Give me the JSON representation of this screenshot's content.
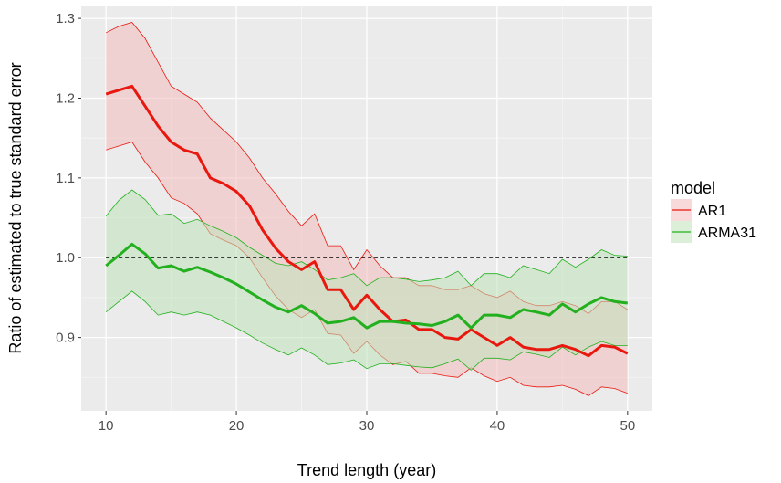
{
  "chart_data": {
    "type": "line",
    "title": "",
    "xlabel": "Trend length (year)",
    "ylabel": "Ratio of estimated to true standard error",
    "xlim": [
      8.1,
      51.9
    ],
    "ylim": [
      0.808,
      1.315
    ],
    "x_ticks": [
      10,
      20,
      30,
      40,
      50
    ],
    "x_tick_labels": [
      "10",
      "20",
      "30",
      "40",
      "50"
    ],
    "y_ticks": [
      0.9,
      1.0,
      1.1,
      1.2,
      1.3
    ],
    "y_tick_labels": [
      "0.9",
      "1.0",
      "1.1",
      "1.2",
      "1.3"
    ],
    "grid": true,
    "reference_line": {
      "y": 1.0,
      "style": "dashed",
      "color": "#000000"
    },
    "legend": {
      "title": "model",
      "position": "right",
      "entries": [
        "AR1",
        "ARMA31"
      ]
    },
    "x": [
      10,
      11,
      12,
      13,
      14,
      15,
      16,
      17,
      18,
      19,
      20,
      21,
      22,
      23,
      24,
      25,
      26,
      27,
      28,
      29,
      30,
      31,
      32,
      33,
      34,
      35,
      36,
      37,
      38,
      39,
      40,
      41,
      42,
      43,
      44,
      45,
      46,
      47,
      48,
      49,
      50
    ],
    "series": [
      {
        "name": "AR1",
        "color": "#e8180f",
        "fill": "#f4bcbc",
        "mean": [
          1.205,
          1.21,
          1.215,
          1.19,
          1.165,
          1.145,
          1.135,
          1.13,
          1.1,
          1.093,
          1.083,
          1.065,
          1.035,
          1.012,
          0.995,
          0.985,
          0.995,
          0.96,
          0.96,
          0.935,
          0.953,
          0.935,
          0.92,
          0.922,
          0.91,
          0.91,
          0.9,
          0.898,
          0.91,
          0.9,
          0.89,
          0.9,
          0.888,
          0.885,
          0.885,
          0.89,
          0.885,
          0.877,
          0.89,
          0.888,
          0.88
        ],
        "upper": [
          1.282,
          1.29,
          1.295,
          1.275,
          1.245,
          1.215,
          1.205,
          1.195,
          1.175,
          1.16,
          1.145,
          1.125,
          1.1,
          1.08,
          1.058,
          1.04,
          1.055,
          1.015,
          1.015,
          0.985,
          1.01,
          0.99,
          0.975,
          0.975,
          0.965,
          0.965,
          0.96,
          0.96,
          0.965,
          0.955,
          0.95,
          0.958,
          0.945,
          0.94,
          0.94,
          0.945,
          0.94,
          0.93,
          0.945,
          0.945,
          0.935
        ],
        "lower": [
          1.135,
          1.14,
          1.145,
          1.12,
          1.1,
          1.075,
          1.068,
          1.055,
          1.03,
          1.022,
          1.015,
          1.0,
          0.975,
          0.952,
          0.935,
          0.925,
          0.935,
          0.905,
          0.903,
          0.88,
          0.895,
          0.878,
          0.866,
          0.87,
          0.855,
          0.855,
          0.852,
          0.85,
          0.862,
          0.852,
          0.845,
          0.85,
          0.84,
          0.838,
          0.838,
          0.84,
          0.835,
          0.827,
          0.838,
          0.836,
          0.83
        ]
      },
      {
        "name": "ARMA31",
        "color": "#22b01e",
        "fill": "#bfe4b9",
        "mean": [
          0.99,
          1.003,
          1.017,
          1.005,
          0.987,
          0.99,
          0.983,
          0.988,
          0.982,
          0.975,
          0.967,
          0.957,
          0.947,
          0.938,
          0.932,
          0.94,
          0.93,
          0.918,
          0.92,
          0.925,
          0.912,
          0.92,
          0.92,
          0.918,
          0.917,
          0.915,
          0.92,
          0.928,
          0.912,
          0.928,
          0.928,
          0.925,
          0.935,
          0.932,
          0.928,
          0.942,
          0.932,
          0.942,
          0.95,
          0.945,
          0.943
        ],
        "upper": [
          1.052,
          1.072,
          1.085,
          1.073,
          1.053,
          1.055,
          1.043,
          1.048,
          1.04,
          1.033,
          1.025,
          1.013,
          1.003,
          0.993,
          0.99,
          0.995,
          0.985,
          0.972,
          0.975,
          0.98,
          0.965,
          0.975,
          0.975,
          0.973,
          0.97,
          0.972,
          0.975,
          0.983,
          0.965,
          0.98,
          0.98,
          0.975,
          0.99,
          0.985,
          0.98,
          0.998,
          0.988,
          0.998,
          1.01,
          1.003,
          1.002
        ],
        "lower": [
          0.932,
          0.945,
          0.958,
          0.945,
          0.928,
          0.932,
          0.928,
          0.932,
          0.928,
          0.92,
          0.912,
          0.903,
          0.893,
          0.885,
          0.878,
          0.887,
          0.878,
          0.866,
          0.868,
          0.872,
          0.861,
          0.867,
          0.867,
          0.865,
          0.863,
          0.862,
          0.867,
          0.873,
          0.859,
          0.874,
          0.874,
          0.872,
          0.882,
          0.879,
          0.875,
          0.888,
          0.878,
          0.888,
          0.895,
          0.89,
          0.89
        ]
      }
    ]
  }
}
